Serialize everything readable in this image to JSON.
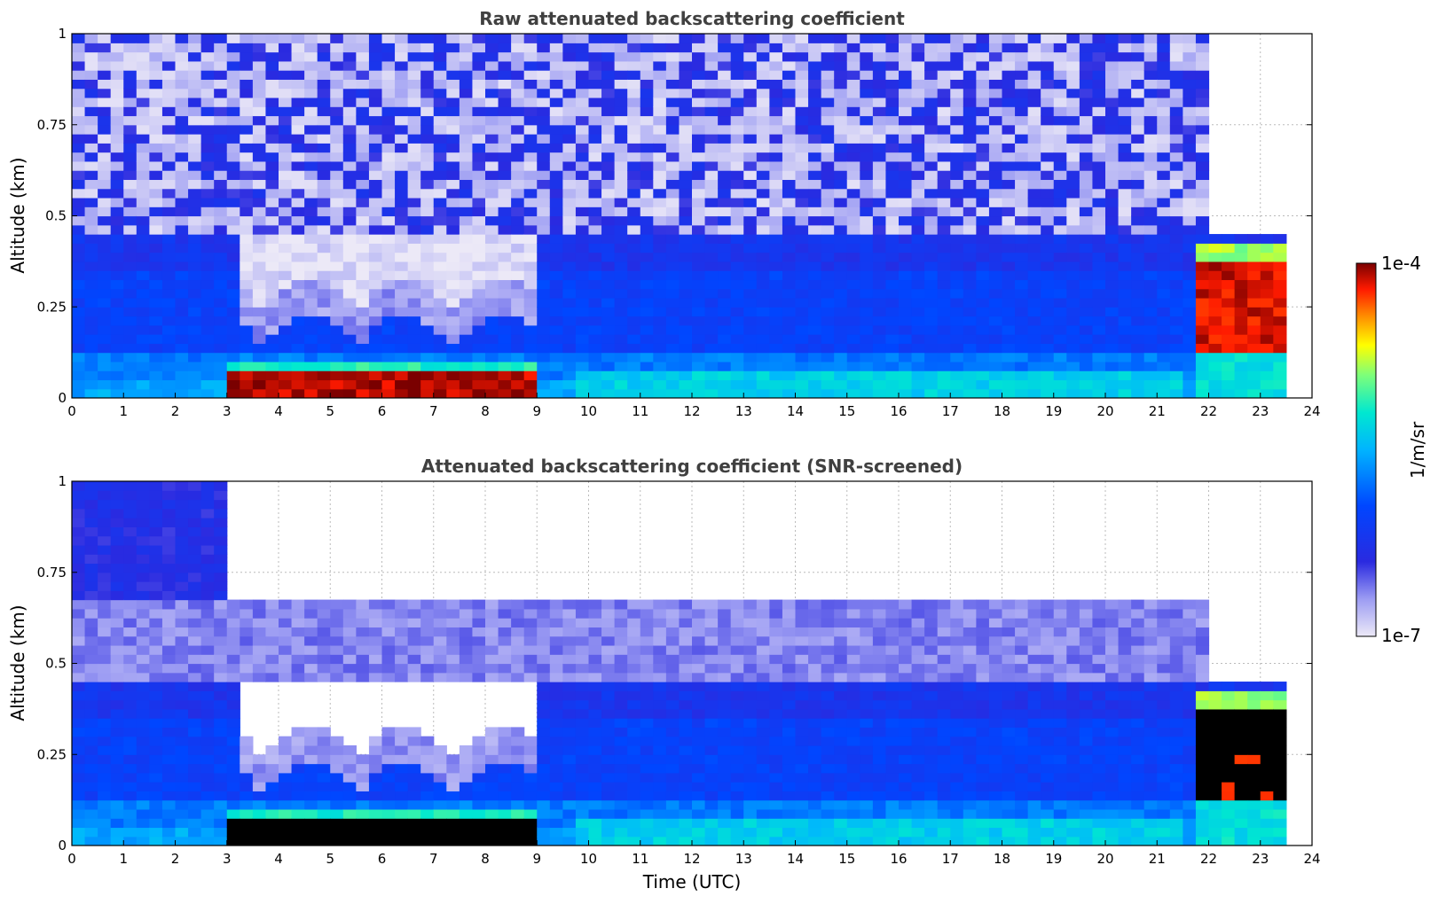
{
  "chart_data": [
    {
      "type": "heatmap",
      "title": "Raw attenuated backscattering coefficient",
      "xlabel": "",
      "ylabel": "Altitude (km)",
      "xlim": [
        0,
        24
      ],
      "ylim": [
        0,
        1
      ],
      "x_ticks": [
        "0",
        "1",
        "2",
        "3",
        "4",
        "5",
        "6",
        "7",
        "8",
        "9",
        "10",
        "11",
        "12",
        "13",
        "14",
        "15",
        "16",
        "17",
        "18",
        "19",
        "20",
        "21",
        "22",
        "23",
        "24"
      ],
      "y_ticks": [
        "0",
        "0.25",
        "0.5",
        "0.75",
        "1"
      ],
      "grid": true,
      "color_scale": "log jet",
      "features": [
        {
          "label": "surface aerosol layer",
          "time_range_utc": [
            3.1,
            9.0
          ],
          "altitude_km": [
            0.0,
            0.08
          ],
          "level": "high"
        },
        {
          "label": "elevated aerosol plume",
          "time_range_utc": [
            21.7,
            23.6
          ],
          "altitude_km": [
            0.1,
            0.42
          ],
          "level": "high"
        },
        {
          "label": "noise dominated region",
          "time_range_utc": [
            0,
            22
          ],
          "altitude_km": [
            0.45,
            1.0
          ],
          "level": "low"
        }
      ]
    },
    {
      "type": "heatmap",
      "title": "Attenuated backscattering coefficient (SNR-screened)",
      "xlabel": "Time (UTC)",
      "ylabel": "Altitude (km)",
      "xlim": [
        0,
        24
      ],
      "ylim": [
        0,
        1
      ],
      "x_ticks": [
        "0",
        "1",
        "2",
        "3",
        "4",
        "5",
        "6",
        "7",
        "8",
        "9",
        "10",
        "11",
        "12",
        "13",
        "14",
        "15",
        "16",
        "17",
        "18",
        "19",
        "20",
        "21",
        "22",
        "23",
        "24"
      ],
      "y_ticks": [
        "0",
        "0.25",
        "0.5",
        "0.75",
        "1"
      ],
      "grid": true,
      "color_scale": "log jet",
      "features": [
        {
          "label": "saturated surface layer",
          "time_range_utc": [
            3.1,
            9.0
          ],
          "altitude_km": [
            0.0,
            0.08
          ],
          "level": "saturated"
        },
        {
          "label": "saturated elevated plume",
          "time_range_utc": [
            21.7,
            23.6
          ],
          "altitude_km": [
            0.1,
            0.35
          ],
          "level": "saturated"
        }
      ]
    }
  ],
  "colorbar": {
    "label": "1/m/sr",
    "max_label": "1e-4",
    "min_label": "1e-7",
    "scale": "log",
    "range": [
      1e-07,
      0.0001
    ]
  }
}
